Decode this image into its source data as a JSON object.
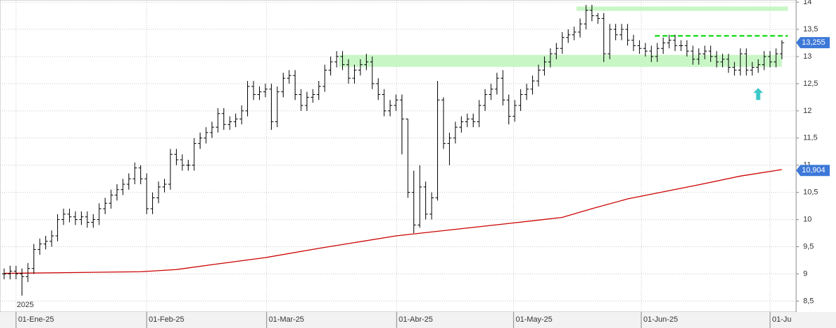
{
  "chart_data": {
    "type": "ohlc",
    "open": [
      9.0,
      9.0,
      9.05,
      9.0,
      8.95,
      9.1,
      9.45,
      9.55,
      9.6,
      9.7,
      10.0,
      10.1,
      10.05,
      10.0,
      10.05,
      9.95,
      10.0,
      10.2,
      10.3,
      10.45,
      10.55,
      10.65,
      10.75,
      10.95,
      10.75,
      10.2,
      10.4,
      10.6,
      10.65,
      11.2,
      11.1,
      11.0,
      11.0,
      11.4,
      11.5,
      11.6,
      11.7,
      11.95,
      11.75,
      11.8,
      11.85,
      12.0,
      12.45,
      12.3,
      12.35,
      12.4,
      11.8,
      12.35,
      12.6,
      12.65,
      12.3,
      12.1,
      12.25,
      12.3,
      12.45,
      12.75,
      12.9,
      13.0,
      12.85,
      12.6,
      12.75,
      12.85,
      12.9,
      12.5,
      12.3,
      12.0,
      12.1,
      12.2,
      11.85,
      10.5,
      9.9,
      10.6,
      10.1,
      10.4,
      12.2,
      11.4,
      11.5,
      11.7,
      11.8,
      11.85,
      11.8,
      12.1,
      12.3,
      12.4,
      12.6,
      12.2,
      11.9,
      12.1,
      12.3,
      12.4,
      12.55,
      12.75,
      12.9,
      13.05,
      13.15,
      13.35,
      13.4,
      13.45,
      13.6,
      13.85,
      13.75,
      13.7,
      13.05,
      13.5,
      13.4,
      13.5,
      13.3,
      13.2,
      13.15,
      13.1,
      13.0,
      13.15,
      13.25,
      13.3,
      13.2,
      13.2,
      13.1,
      12.95,
      13.05,
      13.1,
      13.0,
      12.9,
      12.95,
      12.8,
      12.75,
      13.05,
      12.75,
      12.8,
      12.85,
      13.0,
      12.9,
      13.05
    ],
    "high": [
      9.1,
      9.15,
      9.15,
      9.1,
      9.2,
      9.55,
      9.65,
      9.7,
      9.8,
      10.1,
      10.2,
      10.2,
      10.15,
      10.15,
      10.15,
      10.1,
      10.3,
      10.4,
      10.55,
      10.65,
      10.75,
      10.85,
      11.05,
      11.0,
      10.85,
      10.5,
      10.7,
      10.75,
      11.3,
      11.3,
      11.2,
      11.1,
      11.5,
      11.6,
      11.7,
      11.8,
      12.05,
      12.05,
      11.9,
      11.95,
      12.1,
      12.55,
      12.55,
      12.45,
      12.5,
      12.5,
      12.45,
      12.7,
      12.75,
      12.75,
      12.4,
      12.35,
      12.4,
      12.55,
      12.85,
      13.0,
      13.1,
      13.1,
      12.95,
      12.85,
      12.95,
      13.05,
      13.0,
      12.6,
      12.4,
      12.2,
      12.3,
      12.3,
      11.85,
      10.9,
      11.0,
      10.7,
      10.5,
      12.55,
      12.25,
      11.6,
      11.8,
      11.9,
      11.95,
      11.95,
      12.2,
      12.4,
      12.5,
      12.7,
      12.75,
      12.3,
      12.2,
      12.4,
      12.5,
      12.65,
      12.85,
      13.0,
      13.15,
      13.25,
      13.45,
      13.5,
      13.55,
      13.7,
      13.95,
      13.95,
      13.8,
      13.8,
      13.6,
      13.6,
      13.6,
      13.6,
      13.4,
      13.3,
      13.25,
      13.2,
      13.25,
      13.35,
      13.4,
      13.4,
      13.3,
      13.3,
      13.2,
      13.15,
      13.2,
      13.2,
      13.1,
      13.05,
      13.05,
      12.9,
      13.15,
      13.15,
      12.9,
      12.95,
      13.1,
      13.1,
      13.15,
      13.3
    ],
    "low": [
      8.9,
      8.9,
      8.9,
      8.6,
      8.85,
      9.0,
      9.35,
      9.45,
      9.5,
      9.6,
      9.9,
      9.95,
      9.9,
      9.9,
      9.85,
      9.85,
      9.9,
      10.1,
      10.2,
      10.35,
      10.45,
      10.55,
      10.65,
      10.65,
      10.1,
      10.1,
      10.3,
      10.5,
      10.55,
      11.0,
      10.9,
      10.9,
      10.9,
      11.3,
      11.4,
      11.5,
      11.6,
      11.65,
      11.65,
      11.7,
      11.75,
      11.9,
      12.2,
      12.2,
      12.25,
      11.65,
      11.7,
      12.25,
      12.5,
      12.2,
      12.0,
      12.0,
      12.15,
      12.2,
      12.35,
      12.65,
      12.8,
      12.75,
      12.5,
      12.5,
      12.65,
      12.75,
      12.4,
      12.2,
      11.9,
      11.9,
      12.0,
      11.2,
      10.4,
      9.75,
      9.85,
      10.0,
      10.0,
      10.35,
      11.3,
      11.0,
      11.4,
      11.6,
      11.7,
      11.7,
      11.7,
      12.0,
      12.2,
      12.3,
      12.1,
      11.75,
      11.8,
      12.0,
      12.2,
      12.3,
      12.45,
      12.65,
      12.8,
      12.95,
      13.05,
      13.25,
      13.3,
      13.35,
      13.5,
      13.65,
      13.6,
      12.9,
      12.95,
      13.3,
      13.3,
      13.2,
      13.1,
      13.05,
      13.0,
      12.9,
      12.9,
      13.05,
      13.15,
      13.1,
      13.1,
      13.0,
      12.85,
      12.85,
      12.95,
      12.9,
      12.8,
      12.8,
      12.7,
      12.65,
      12.65,
      12.65,
      12.65,
      12.7,
      12.75,
      12.8,
      12.8,
      12.95
    ],
    "close": [
      9.0,
      9.05,
      9.0,
      8.95,
      9.1,
      9.45,
      9.55,
      9.6,
      9.7,
      10.0,
      10.1,
      10.05,
      10.0,
      10.05,
      9.95,
      10.0,
      10.2,
      10.3,
      10.45,
      10.55,
      10.65,
      10.75,
      10.95,
      10.75,
      10.2,
      10.4,
      10.6,
      10.65,
      11.2,
      11.1,
      11.0,
      11.0,
      11.4,
      11.5,
      11.6,
      11.7,
      11.95,
      11.75,
      11.8,
      11.85,
      12.0,
      12.45,
      12.3,
      12.35,
      12.4,
      11.8,
      12.35,
      12.6,
      12.65,
      12.3,
      12.1,
      12.25,
      12.3,
      12.45,
      12.75,
      12.9,
      13.0,
      12.85,
      12.6,
      12.75,
      12.85,
      12.9,
      12.5,
      12.3,
      12.0,
      12.1,
      12.2,
      11.85,
      10.5,
      9.9,
      10.6,
      10.1,
      10.4,
      12.2,
      11.4,
      11.5,
      11.7,
      11.8,
      11.85,
      11.8,
      12.1,
      12.3,
      12.4,
      12.6,
      12.2,
      11.9,
      12.1,
      12.3,
      12.4,
      12.55,
      12.75,
      12.9,
      13.05,
      13.15,
      13.35,
      13.4,
      13.45,
      13.6,
      13.85,
      13.75,
      13.7,
      13.05,
      13.5,
      13.4,
      13.5,
      13.3,
      13.2,
      13.15,
      13.1,
      13.0,
      13.15,
      13.25,
      13.3,
      13.2,
      13.2,
      13.1,
      12.95,
      13.05,
      13.1,
      13.0,
      12.9,
      12.95,
      12.8,
      12.75,
      13.05,
      12.75,
      12.8,
      12.85,
      13.0,
      12.9,
      13.05,
      13.255
    ],
    "color": "#000000",
    "moving_average": {
      "color": "#cc0000",
      "x": [
        0,
        23,
        29,
        35,
        44,
        53,
        66,
        76,
        86,
        94,
        99,
        105,
        117,
        124,
        131
      ],
      "values": [
        9.01,
        9.04,
        9.08,
        9.17,
        9.3,
        9.47,
        9.7,
        9.82,
        9.94,
        10.04,
        10.2,
        10.38,
        10.64,
        10.8,
        10.92
      ]
    },
    "zones": [
      {
        "color": "#c8f7c5",
        "x": [
          56.4,
          131
        ],
        "y": [
          12.81,
          13.03
        ]
      },
      {
        "color": "#c8f7c5",
        "x": [
          96.4,
          132
        ],
        "y": [
          13.84,
          13.92
        ]
      }
    ],
    "dashed_line": {
      "color": "#22dd22",
      "x": [
        109.6,
        132
      ],
      "value": 13.38
    },
    "arrow": {
      "color": "#3cc8c8",
      "x": 127,
      "y": [
        12.2,
        12.42
      ]
    },
    "price_tags": [
      {
        "value": 13.255,
        "label": "13,255"
      },
      {
        "value": 10.904,
        "label": "10,904"
      }
    ],
    "year_label": "2025",
    "xlim": [
      -0.7,
      133.4
    ],
    "xticks": [
      {
        "value": 2,
        "label": "01-Ene-25"
      },
      {
        "value": 24,
        "label": "01-Feb-25"
      },
      {
        "value": 44.2,
        "label": "01-Mar-25"
      },
      {
        "value": 66.1,
        "label": "01-Abr-25"
      },
      {
        "value": 85.8,
        "label": "01-May-25"
      },
      {
        "value": 107.3,
        "label": "01-Jun-25"
      },
      {
        "value": 129,
        "label": "01-Ju"
      }
    ],
    "ylim": [
      8.3,
      14.04
    ],
    "yticks": [
      {
        "value": 8.5,
        "label": "8,5"
      },
      9,
      {
        "value": 9.5,
        "label": "9,5"
      },
      10,
      {
        "value": 10.5,
        "label": "10,5"
      },
      11,
      {
        "value": 11.5,
        "label": "11,5"
      },
      12,
      {
        "value": 12.5,
        "label": "12,5"
      },
      13,
      {
        "value": 13.5,
        "label": "13,5"
      },
      14
    ],
    "grid": true
  }
}
